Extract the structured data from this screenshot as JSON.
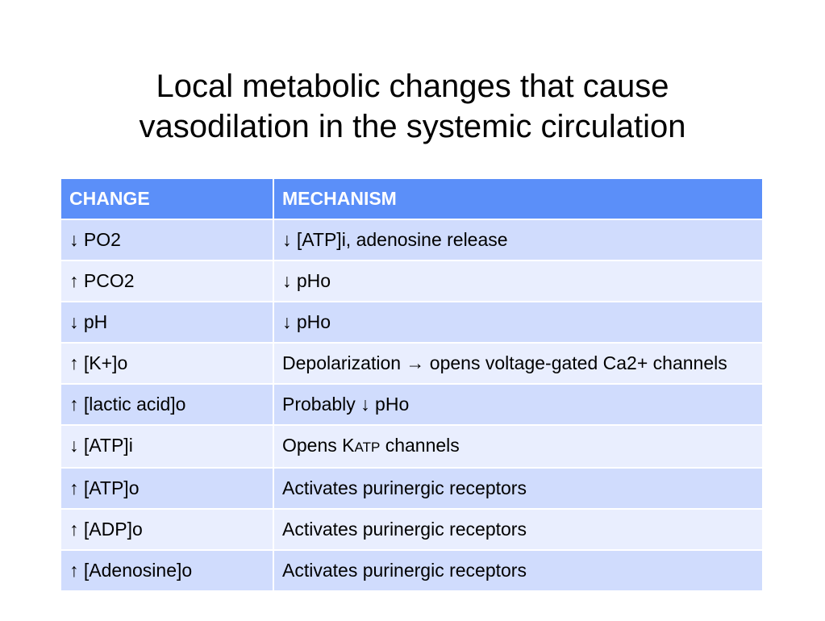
{
  "slide": {
    "title_line1": "Local metabolic changes that cause",
    "title_line2": "vasodilation in the systemic circulation"
  },
  "table": {
    "headers": [
      "CHANGE",
      "MECHANISM"
    ],
    "rows": [
      {
        "change": "↓ PO2",
        "mechanism": "↓ [ATP]i, adenosine release"
      },
      {
        "change": "↑ PCO2",
        "mechanism": "↓ pHo"
      },
      {
        "change": "↓ pH",
        "mechanism": "↓ pHo"
      },
      {
        "change": "↑ [K+]o",
        "mechanism": "Depolarization → opens voltage-gated Ca2+ channels"
      },
      {
        "change": "↑ [lactic acid]o",
        "mechanism": "Probably ↓ pHo"
      },
      {
        "change": "↓ [ATP]i",
        "mechanism": "Opens KATP channels",
        "mechanism_pre": "Opens ",
        "mechanism_k": "K",
        "mechanism_sub": "ATP",
        "mechanism_post": " channels"
      },
      {
        "change": "↑ [ATP]o",
        "mechanism": "Activates purinergic receptors"
      },
      {
        "change": "↑ [ADP]o",
        "mechanism": "Activates purinergic receptors"
      },
      {
        "change": "↑ [Adenosine]o",
        "mechanism": "Activates purinergic receptors"
      }
    ]
  },
  "colors": {
    "header_bg": "#5b8ff9",
    "row_dark": "#d0dcfd",
    "row_light": "#e9eefe"
  }
}
